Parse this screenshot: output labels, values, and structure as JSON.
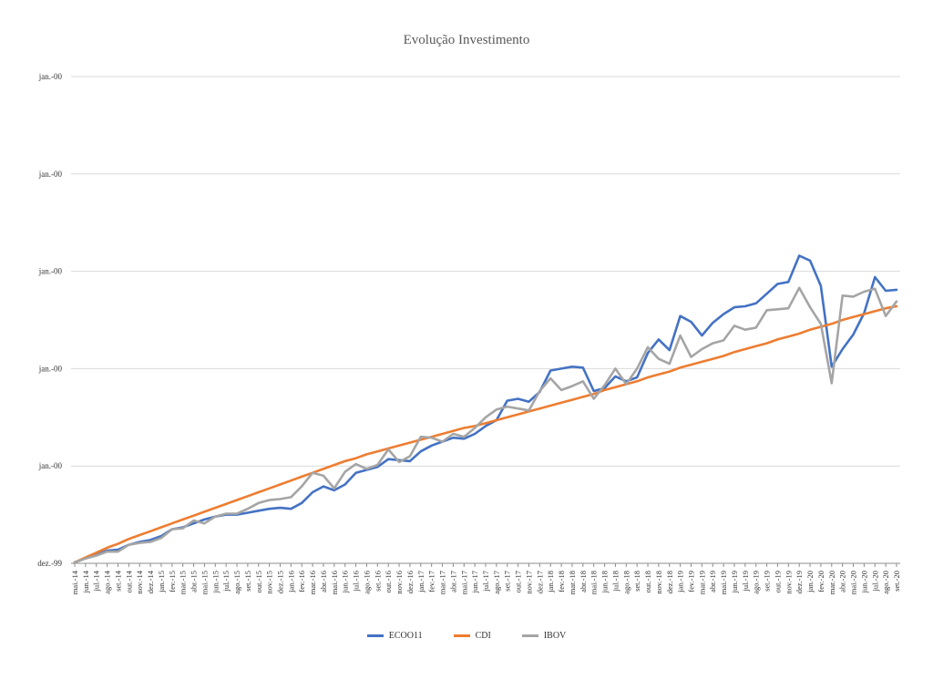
{
  "chart_data": {
    "type": "line",
    "title": "Evolução Investimento",
    "xlabel": "",
    "ylabel": "",
    "ylim": [
      0.95,
      1.45
    ],
    "yticks": [
      {
        "value": 0.95,
        "label": "dez.-99"
      },
      {
        "value": 1.05,
        "label": "jan.-00"
      },
      {
        "value": 1.15,
        "label": "jan.-00"
      },
      {
        "value": 1.25,
        "label": "jan.-00"
      },
      {
        "value": 1.35,
        "label": "jan.-00"
      },
      {
        "value": 1.45,
        "label": "jan.-00"
      }
    ],
    "grid": true,
    "legend_position": "bottom",
    "categories": [
      "mai.-14",
      "jun.-14",
      "jul.-14",
      "ago.-14",
      "set.-14",
      "out.-14",
      "nov.-14",
      "dez.-14",
      "jan.-15",
      "fev.-15",
      "mar.-15",
      "abr.-15",
      "mai.-15",
      "jun.-15",
      "jul.-15",
      "ago.-15",
      "set.-15",
      "out.-15",
      "nov.-15",
      "dez.-15",
      "jan.-16",
      "fev.-16",
      "mar.-16",
      "abr.-16",
      "mai.-16",
      "jun.-16",
      "jul.-16",
      "ago.-16",
      "set.-16",
      "out.-16",
      "nov.-16",
      "dez.-16",
      "jan.-17",
      "fev.-17",
      "mar.-17",
      "abr.-17",
      "mai.-17",
      "jun.-17",
      "jul.-17",
      "ago.-17",
      "set.-17",
      "out.-17",
      "nov.-17",
      "dez.-17",
      "jan.-18",
      "fev.-18",
      "mar.-18",
      "abr.-18",
      "mai.-18",
      "jun.-18",
      "jul.-18",
      "ago.-18",
      "set.-18",
      "out.-18",
      "nov.-18",
      "dez.-18",
      "jan.-19",
      "fev.-19",
      "mar.-19",
      "abr.-19",
      "mai.-19",
      "jun.-19",
      "jul.-19",
      "ago.-19",
      "set.-19",
      "out.-19",
      "nov.-19",
      "dez.-19",
      "jan.-20",
      "fev.-20",
      "mar.-20",
      "abr.-20",
      "mai.-20",
      "jun.-20",
      "jul.-20",
      "ago.-20",
      "set.-20"
    ],
    "series": [
      {
        "name": "ECOO11",
        "color": "#4472C4",
        "values": [
          0.951,
          0.955,
          0.959,
          0.963,
          0.964,
          0.969,
          0.972,
          0.974,
          0.978,
          0.985,
          0.987,
          0.991,
          0.995,
          0.998,
          1.0,
          1.0,
          1.002,
          1.004,
          1.006,
          1.007,
          1.006,
          1.012,
          1.023,
          1.029,
          1.025,
          1.031,
          1.043,
          1.046,
          1.049,
          1.057,
          1.056,
          1.055,
          1.065,
          1.071,
          1.075,
          1.079,
          1.078,
          1.083,
          1.091,
          1.097,
          1.117,
          1.119,
          1.116,
          1.126,
          1.148,
          1.15,
          1.152,
          1.151,
          1.127,
          1.13,
          1.142,
          1.137,
          1.141,
          1.166,
          1.18,
          1.169,
          1.204,
          1.198,
          1.184,
          1.197,
          1.206,
          1.213,
          1.214,
          1.217,
          1.227,
          1.237,
          1.239,
          1.266,
          1.261,
          1.235,
          1.152,
          1.17,
          1.185,
          1.207,
          1.244,
          1.23,
          1.231
        ]
      },
      {
        "name": "CDI",
        "color": "#ED7D31",
        "values": [
          0.951,
          0.956,
          0.961,
          0.966,
          0.97,
          0.975,
          0.979,
          0.983,
          0.987,
          0.991,
          0.995,
          0.999,
          1.003,
          1.007,
          1.011,
          1.015,
          1.019,
          1.023,
          1.027,
          1.031,
          1.035,
          1.039,
          1.043,
          1.047,
          1.051,
          1.055,
          1.058,
          1.062,
          1.065,
          1.068,
          1.071,
          1.074,
          1.077,
          1.08,
          1.083,
          1.086,
          1.089,
          1.091,
          1.094,
          1.097,
          1.1,
          1.103,
          1.106,
          1.109,
          1.112,
          1.115,
          1.118,
          1.121,
          1.124,
          1.128,
          1.131,
          1.134,
          1.137,
          1.141,
          1.144,
          1.147,
          1.151,
          1.154,
          1.157,
          1.16,
          1.163,
          1.167,
          1.17,
          1.173,
          1.176,
          1.18,
          1.183,
          1.186,
          1.19,
          1.193,
          1.196,
          1.2,
          1.203,
          1.206,
          1.209,
          1.212,
          1.214
        ]
      },
      {
        "name": "IBOV",
        "color": "#A5A5A5",
        "values": [
          0.951,
          0.955,
          0.958,
          0.962,
          0.962,
          0.969,
          0.971,
          0.972,
          0.976,
          0.985,
          0.986,
          0.994,
          0.991,
          0.998,
          1.001,
          1.001,
          1.006,
          1.012,
          1.015,
          1.016,
          1.018,
          1.029,
          1.043,
          1.04,
          1.027,
          1.044,
          1.052,
          1.047,
          1.051,
          1.067,
          1.054,
          1.06,
          1.08,
          1.079,
          1.075,
          1.083,
          1.08,
          1.089,
          1.1,
          1.108,
          1.111,
          1.109,
          1.107,
          1.127,
          1.14,
          1.128,
          1.132,
          1.137,
          1.119,
          1.133,
          1.15,
          1.134,
          1.15,
          1.172,
          1.16,
          1.155,
          1.184,
          1.162,
          1.17,
          1.176,
          1.179,
          1.194,
          1.19,
          1.192,
          1.21,
          1.211,
          1.212,
          1.233,
          1.213,
          1.196,
          1.135,
          1.225,
          1.224,
          1.229,
          1.232,
          1.204,
          1.219
        ]
      }
    ]
  }
}
